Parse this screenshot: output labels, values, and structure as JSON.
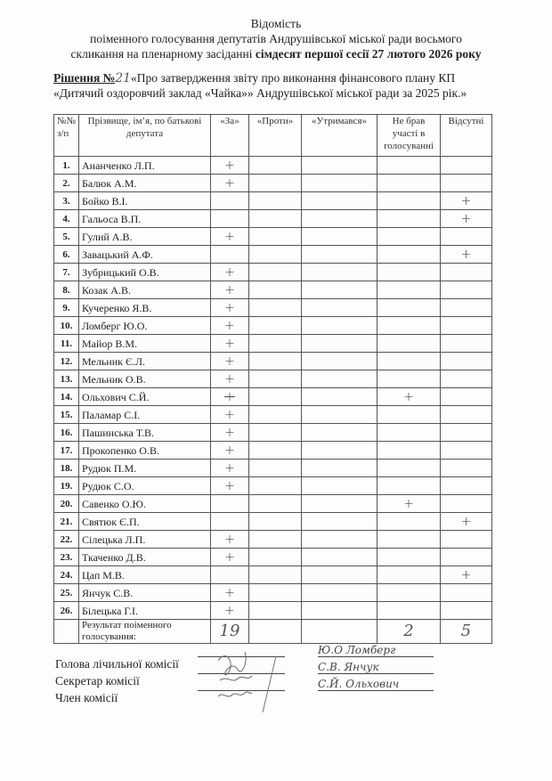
{
  "header": {
    "title": "Відомість",
    "line2": "поіменного голосування депутатів Андрушівської міської ради восьмого",
    "line3_plain": "скликання на пленарному засіданні ",
    "line3_bold": "сімдесят першої сесії  27 лютого 2026 року"
  },
  "decision": {
    "label": "Рішення №",
    "number": "21",
    "text1": "«Про затвердження звіту про виконання фінансового плану КП",
    "text2": "«Дитячий оздоровчий заклад «Чайка»» Андрушівської міської ради за 2025 рік.»"
  },
  "table": {
    "headers": [
      "№№ з/п",
      "Прізвище, ім’я, по батькові депутата",
      "«За»",
      "«Проти»",
      "«Утримався»",
      "Не брав участі в голосуванні",
      "Відсутні"
    ],
    "rows": [
      {
        "n": "1.",
        "name": "Ананченко Л.П.",
        "vote": "za"
      },
      {
        "n": "2.",
        "name": "Балюк А.М.",
        "vote": "za"
      },
      {
        "n": "3.",
        "name": "Бойко В.І.",
        "vote": "absent"
      },
      {
        "n": "4.",
        "name": "Гальоса В.П.",
        "vote": "absent"
      },
      {
        "n": "5.",
        "name": "Гулий А.В.",
        "vote": "za"
      },
      {
        "n": "6.",
        "name": "Завацький А.Ф.",
        "vote": "absent"
      },
      {
        "n": "7.",
        "name": "Зубрицький О.В.",
        "vote": "za"
      },
      {
        "n": "8.",
        "name": "Козак А.В.",
        "vote": "za"
      },
      {
        "n": "9.",
        "name": "Кучеренко Я.В.",
        "vote": "za"
      },
      {
        "n": "10.",
        "name": "Ломберг Ю.О.",
        "vote": "za"
      },
      {
        "n": "11.",
        "name": "Майор В.М.",
        "vote": "za"
      },
      {
        "n": "12.",
        "name": "Мельник Є.Л.",
        "vote": "za"
      },
      {
        "n": "13.",
        "name": "Мельник О.В.",
        "vote": "za"
      },
      {
        "n": "14.",
        "name": "Ольхович С.Й.",
        "vote": "notvoted",
        "struck_za": true
      },
      {
        "n": "15.",
        "name": "Паламар С.І.",
        "vote": "za"
      },
      {
        "n": "16.",
        "name": "Пашинська Т.В.",
        "vote": "za"
      },
      {
        "n": "17.",
        "name": "Прокопенко О.В.",
        "vote": "za"
      },
      {
        "n": "18.",
        "name": "Рудюк П.М.",
        "vote": "za"
      },
      {
        "n": "19.",
        "name": "Рудюк С.О.",
        "vote": "za"
      },
      {
        "n": "20.",
        "name": "Савенко О.Ю.",
        "vote": "notvoted"
      },
      {
        "n": "21.",
        "name": "Святюк Є.П.",
        "vote": "absent"
      },
      {
        "n": "22.",
        "name": "Сілецька Л.П.",
        "vote": "za"
      },
      {
        "n": "23.",
        "name": "Ткаченко Д.В.",
        "vote": "za"
      },
      {
        "n": "24.",
        "name": "Цап М.В.",
        "vote": "absent"
      },
      {
        "n": "25.",
        "name": "Янчук С.В.",
        "vote": "za"
      },
      {
        "n": "26.",
        "name": "Білецька Г.І.",
        "vote": "za"
      }
    ],
    "mark": "+",
    "result": {
      "label": "Результат поіменного голосування:",
      "za": "19",
      "proty": "",
      "utrymavsia": "",
      "notvoted": "2",
      "absent": "5"
    }
  },
  "signatures": [
    {
      "role": "Голова лічильної комісії",
      "name": "Ю.О Ломберг"
    },
    {
      "role": "Секретар комісії",
      "name": "С.В. Янчук"
    },
    {
      "role": "Член комісії",
      "name": "С.Й. Ольхович"
    }
  ]
}
